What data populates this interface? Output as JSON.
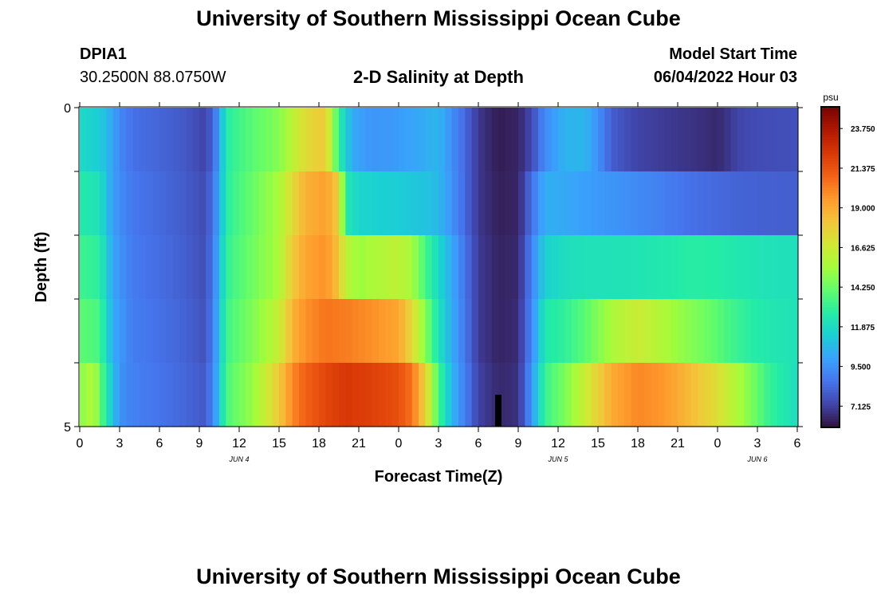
{
  "header": {
    "title": "University of Southern Mississippi Ocean Cube",
    "station": "DPIA1",
    "coords": "30.2500N  88.0750W",
    "chart_title": "2-D Salinity at Depth",
    "model_label": "Model Start Time",
    "model_time": "06/04/2022 Hour 03"
  },
  "footer": {
    "title": "University of Southern Mississippi Ocean Cube"
  },
  "chart_data": {
    "type": "heatmap",
    "title": "2-D Salinity at Depth",
    "xlabel": "Forecast Time(Z)",
    "ylabel": "Depth (ft)",
    "x_start_hour": 0,
    "x_end_hour": 54,
    "x_tick_labels": [
      "0",
      "3",
      "6",
      "9",
      "12",
      "15",
      "18",
      "21",
      "0",
      "3",
      "6",
      "9",
      "12",
      "15",
      "18",
      "21",
      "0",
      "3",
      "6"
    ],
    "x_tick_hours": [
      0,
      3,
      6,
      9,
      12,
      15,
      18,
      21,
      24,
      27,
      30,
      33,
      36,
      39,
      42,
      45,
      48,
      51,
      54
    ],
    "date_labels": [
      {
        "label": "JUN 4",
        "hour": 12
      },
      {
        "label": "JUN 5",
        "hour": 36
      },
      {
        "label": "JUN 6",
        "hour": 51
      }
    ],
    "y_tick_labels": [
      "0",
      "5"
    ],
    "ylim": [
      0,
      5
    ],
    "depth_rows": 5,
    "colorbar": {
      "unit": "psu",
      "vmin": 5.9,
      "vmax": 25.0,
      "tick_values": [
        23.75,
        21.375,
        19.0,
        16.625,
        14.25,
        11.875,
        9.5,
        7.125
      ],
      "tick_labels": [
        "23.750",
        "21.375",
        "19.000",
        "16.625",
        "14.250",
        "11.875",
        "9.500",
        "7.125"
      ],
      "colors": [
        "#30123b",
        "#4145ab",
        "#4675ed",
        "#39a2fc",
        "#1bcfd4",
        "#24eca6",
        "#61fc6c",
        "#a4fc3b",
        "#d1e834",
        "#f3c63a",
        "#fe9b2d",
        "#f36315",
        "#d93806",
        "#b11901",
        "#7a0402"
      ]
    },
    "marker": {
      "hour": 31.5,
      "depth_from": 4.5,
      "depth_to": 5.0
    },
    "series": [
      {
        "name": "layer 0-1 ft",
        "keyframes": [
          [
            0,
            11.8
          ],
          [
            1.5,
            11.3
          ],
          [
            2,
            10.8
          ],
          [
            3,
            9.2
          ],
          [
            4,
            8.5
          ],
          [
            6,
            8.2
          ],
          [
            8,
            7.8
          ],
          [
            9.5,
            7.2
          ],
          [
            10.2,
            8.8
          ],
          [
            10.8,
            11.5
          ],
          [
            11.3,
            13.0
          ],
          [
            13,
            13.9
          ],
          [
            15,
            14.8
          ],
          [
            16.5,
            16.8
          ],
          [
            17.5,
            17.7
          ],
          [
            18.5,
            18.0
          ],
          [
            19.2,
            14.5
          ],
          [
            19.8,
            12.0
          ],
          [
            20.5,
            10.2
          ],
          [
            22,
            9.6
          ],
          [
            24,
            9.8
          ],
          [
            26,
            10.3
          ],
          [
            27,
            10.6
          ],
          [
            28,
            9.4
          ],
          [
            29,
            8.3
          ],
          [
            30,
            6.9
          ],
          [
            31.5,
            6.2
          ],
          [
            33,
            6.4
          ],
          [
            34,
            7.4
          ],
          [
            35,
            9.3
          ],
          [
            36.5,
            10.5
          ],
          [
            38,
            10.6
          ],
          [
            39,
            9.5
          ],
          [
            40,
            8.0
          ],
          [
            42,
            7.2
          ],
          [
            44,
            7.0
          ],
          [
            46,
            6.8
          ],
          [
            48,
            6.5
          ],
          [
            49,
            7.0
          ],
          [
            50,
            7.4
          ],
          [
            54,
            7.6
          ]
        ]
      },
      {
        "name": "layer 1-2 ft",
        "keyframes": [
          [
            0,
            12.6
          ],
          [
            1.5,
            12.2
          ],
          [
            2.5,
            9.8
          ],
          [
            4,
            8.7
          ],
          [
            6,
            8.3
          ],
          [
            8,
            7.9
          ],
          [
            9.5,
            7.4
          ],
          [
            10.2,
            9.2
          ],
          [
            10.8,
            11.6
          ],
          [
            11.3,
            13.1
          ],
          [
            13,
            14.2
          ],
          [
            15,
            15.6
          ],
          [
            16,
            17.4
          ],
          [
            17,
            18.8
          ],
          [
            18.5,
            19.4
          ],
          [
            19.5,
            18.0
          ],
          [
            20,
            12.5
          ],
          [
            21,
            11.6
          ],
          [
            24,
            11.3
          ],
          [
            26,
            11.0
          ],
          [
            27,
            10.7
          ],
          [
            28,
            9.5
          ],
          [
            29,
            8.3
          ],
          [
            30,
            6.9
          ],
          [
            31.5,
            6.3
          ],
          [
            33,
            6.4
          ],
          [
            34,
            8.5
          ],
          [
            35,
            10.4
          ],
          [
            36.5,
            10.2
          ],
          [
            38,
            9.9
          ],
          [
            40,
            9.6
          ],
          [
            42,
            9.3
          ],
          [
            44,
            8.9
          ],
          [
            46,
            8.5
          ],
          [
            48,
            8.3
          ],
          [
            50,
            8.1
          ],
          [
            54,
            8.0
          ]
        ]
      },
      {
        "name": "layer 2-3 ft",
        "keyframes": [
          [
            0,
            13.3
          ],
          [
            1.5,
            12.9
          ],
          [
            2.5,
            10.0
          ],
          [
            4,
            8.8
          ],
          [
            6,
            8.4
          ],
          [
            8,
            8.0
          ],
          [
            9.5,
            7.5
          ],
          [
            10.2,
            9.4
          ],
          [
            10.8,
            12.0
          ],
          [
            11.3,
            13.3
          ],
          [
            13,
            14.4
          ],
          [
            15,
            15.6
          ],
          [
            16,
            18.0
          ],
          [
            17,
            19.2
          ],
          [
            18.5,
            19.8
          ],
          [
            19.5,
            18.2
          ],
          [
            20,
            16.2
          ],
          [
            21,
            15.2
          ],
          [
            22,
            15.7
          ],
          [
            24,
            16.2
          ],
          [
            25,
            15.5
          ],
          [
            26,
            13.5
          ],
          [
            27,
            11.8
          ],
          [
            28,
            10.2
          ],
          [
            29,
            8.6
          ],
          [
            30,
            7.0
          ],
          [
            31.5,
            6.4
          ],
          [
            33,
            6.5
          ],
          [
            34,
            9.0
          ],
          [
            35,
            11.5
          ],
          [
            36.5,
            12.0
          ],
          [
            38,
            12.2
          ],
          [
            40,
            12.2
          ],
          [
            42,
            12.3
          ],
          [
            44,
            12.5
          ],
          [
            46,
            12.8
          ],
          [
            48,
            12.7
          ],
          [
            50,
            12.4
          ],
          [
            52,
            12.2
          ],
          [
            54,
            12.1
          ]
        ]
      },
      {
        "name": "layer 3-4 ft",
        "keyframes": [
          [
            0,
            14.0
          ],
          [
            1.5,
            13.5
          ],
          [
            2.5,
            10.2
          ],
          [
            4,
            8.9
          ],
          [
            6,
            8.5
          ],
          [
            8,
            8.1
          ],
          [
            9.5,
            7.6
          ],
          [
            10.2,
            9.6
          ],
          [
            10.8,
            12.3
          ],
          [
            11.3,
            13.6
          ],
          [
            13,
            14.7
          ],
          [
            15,
            16.4
          ],
          [
            16,
            18.8
          ],
          [
            17,
            19.8
          ],
          [
            18.5,
            20.5
          ],
          [
            20,
            20.3
          ],
          [
            22,
            19.8
          ],
          [
            24,
            19.2
          ],
          [
            25,
            17.5
          ],
          [
            26,
            14.8
          ],
          [
            27,
            12.2
          ],
          [
            28,
            10.3
          ],
          [
            29,
            8.7
          ],
          [
            30,
            7.0
          ],
          [
            31.5,
            6.4
          ],
          [
            33,
            6.6
          ],
          [
            34,
            9.2
          ],
          [
            35,
            12.5
          ],
          [
            36.5,
            13.0
          ],
          [
            38,
            13.9
          ],
          [
            40,
            15.6
          ],
          [
            42,
            16.6
          ],
          [
            43,
            16.2
          ],
          [
            45,
            15.2
          ],
          [
            47,
            14.4
          ],
          [
            49,
            13.4
          ],
          [
            51,
            12.6
          ],
          [
            54,
            12.2
          ]
        ]
      },
      {
        "name": "layer 4-5 ft",
        "keyframes": [
          [
            0,
            14.8
          ],
          [
            1,
            16.0
          ],
          [
            2,
            12.5
          ],
          [
            3,
            9.5
          ],
          [
            4,
            9.0
          ],
          [
            6,
            8.6
          ],
          [
            8,
            8.2
          ],
          [
            9.5,
            7.8
          ],
          [
            10.2,
            9.8
          ],
          [
            10.8,
            12.6
          ],
          [
            11.3,
            13.9
          ],
          [
            13,
            15.2
          ],
          [
            15,
            18.0
          ],
          [
            16,
            20.0
          ],
          [
            17,
            21.0
          ],
          [
            18.5,
            21.8
          ],
          [
            20,
            22.3
          ],
          [
            22,
            22.0
          ],
          [
            24,
            21.5
          ],
          [
            25,
            20.5
          ],
          [
            26,
            17.8
          ],
          [
            27,
            13.5
          ],
          [
            28,
            10.6
          ],
          [
            29,
            8.9
          ],
          [
            30,
            7.2
          ],
          [
            31.5,
            6.5
          ],
          [
            33,
            6.7
          ],
          [
            34,
            9.6
          ],
          [
            35,
            13.2
          ],
          [
            36.5,
            14.6
          ],
          [
            38,
            16.5
          ],
          [
            40,
            19.0
          ],
          [
            42,
            20.0
          ],
          [
            44,
            19.6
          ],
          [
            46,
            18.5
          ],
          [
            48,
            17.2
          ],
          [
            50,
            15.2
          ],
          [
            52,
            13.0
          ],
          [
            54,
            12.0
          ]
        ]
      }
    ]
  }
}
